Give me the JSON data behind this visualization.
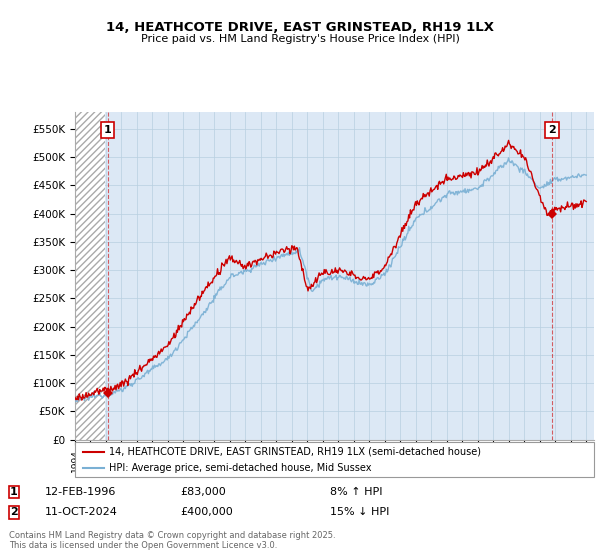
{
  "title": "14, HEATHCOTE DRIVE, EAST GRINSTEAD, RH19 1LX",
  "subtitle": "Price paid vs. HM Land Registry's House Price Index (HPI)",
  "legend_line1": "14, HEATHCOTE DRIVE, EAST GRINSTEAD, RH19 1LX (semi-detached house)",
  "legend_line2": "HPI: Average price, semi-detached house, Mid Sussex",
  "annotation1_date": "12-FEB-1996",
  "annotation1_price": "£83,000",
  "annotation1_hpi": "8% ↑ HPI",
  "annotation2_date": "11-OCT-2024",
  "annotation2_price": "£400,000",
  "annotation2_hpi": "15% ↓ HPI",
  "footer": "Contains HM Land Registry data © Crown copyright and database right 2025.\nThis data is licensed under the Open Government Licence v3.0.",
  "line_color_red": "#cc0000",
  "line_color_blue": "#7ab0d4",
  "background_plot": "#dce8f5",
  "grid_color": "#b8cfe0",
  "ylim": [
    0,
    580000
  ],
  "xlim_start": 1994.0,
  "xlim_end": 2027.5,
  "sale1_x": 1996.1,
  "sale1_y": 83000,
  "sale2_x": 2024.78,
  "sale2_y": 400000,
  "yticks": [
    0,
    50000,
    100000,
    150000,
    200000,
    250000,
    300000,
    350000,
    400000,
    450000,
    500000,
    550000
  ],
  "yticklabels": [
    "£0",
    "£50K",
    "£100K",
    "£150K",
    "£200K",
    "£250K",
    "£300K",
    "£350K",
    "£400K",
    "£450K",
    "£500K",
    "£550K"
  ]
}
